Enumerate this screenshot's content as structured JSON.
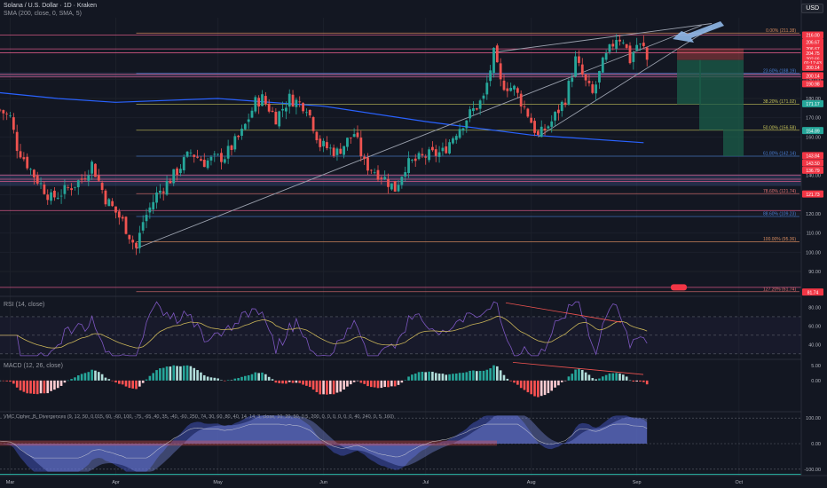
{
  "header": {
    "title": "Solana / U.S. Dollar · 1D · Kraken",
    "sma_legend": "SMA (200, close, 0, SMA, 5)",
    "currency": "USD"
  },
  "colors": {
    "background": "#131722",
    "up": "#26a69a",
    "down": "#ef5350",
    "sma": "#2962ff",
    "pink_line": "#f06292",
    "rsi": "#7e57c2",
    "fib_yellow": "#c9c65a",
    "fib_red": "#e57373",
    "arrow": "#90b8e8"
  },
  "chart_data": [
    {
      "type": "candlestick",
      "title": "Solana / U.S. Dollar · 1D · Kraken",
      "x_ticks": [
        "Mar",
        "Apr",
        "May",
        "Jun",
        "Jul",
        "Aug",
        "Sep",
        "Oct"
      ],
      "y_ticks": [
        90,
        100,
        110,
        120,
        130,
        140,
        150,
        160,
        170,
        180,
        190
      ],
      "ylim": [
        78,
        222
      ],
      "price_path": [
        [
          "2025-02-26",
          174
        ],
        [
          "2025-03-01",
          170
        ],
        [
          "2025-03-03",
          155
        ],
        [
          "2025-03-08",
          140
        ],
        [
          "2025-03-13",
          128
        ],
        [
          "2025-03-17",
          132
        ],
        [
          "2025-03-22",
          138
        ],
        [
          "2025-03-25",
          146
        ],
        [
          "2025-03-29",
          128
        ],
        [
          "2025-04-03",
          116
        ],
        [
          "2025-04-07",
          102
        ],
        [
          "2025-04-09",
          116
        ],
        [
          "2025-04-13",
          130
        ],
        [
          "2025-04-18",
          140
        ],
        [
          "2025-04-23",
          152
        ],
        [
          "2025-04-27",
          147
        ],
        [
          "2025-05-03",
          150
        ],
        [
          "2025-05-08",
          162
        ],
        [
          "2025-05-12",
          178
        ],
        [
          "2025-05-14",
          180
        ],
        [
          "2025-05-18",
          170
        ],
        [
          "2025-05-22",
          180
        ],
        [
          "2025-05-27",
          176
        ],
        [
          "2025-05-31",
          156
        ],
        [
          "2025-06-05",
          152
        ],
        [
          "2025-06-10",
          162
        ],
        [
          "2025-06-13",
          146
        ],
        [
          "2025-06-18",
          140
        ],
        [
          "2025-06-22",
          133
        ],
        [
          "2025-06-25",
          145
        ],
        [
          "2025-07-01",
          150
        ],
        [
          "2025-07-06",
          152
        ],
        [
          "2025-07-10",
          163
        ],
        [
          "2025-07-14",
          172
        ],
        [
          "2025-07-18",
          180
        ],
        [
          "2025-07-21",
          203
        ],
        [
          "2025-07-23",
          188
        ],
        [
          "2025-07-27",
          185
        ],
        [
          "2025-07-31",
          172
        ],
        [
          "2025-08-03",
          160
        ],
        [
          "2025-08-07",
          168
        ],
        [
          "2025-08-11",
          180
        ],
        [
          "2025-08-14",
          200
        ],
        [
          "2025-08-17",
          188
        ],
        [
          "2025-08-19",
          182
        ],
        [
          "2025-08-22",
          198
        ],
        [
          "2025-08-26",
          212
        ],
        [
          "2025-08-28",
          211
        ],
        [
          "2025-08-30",
          200
        ],
        [
          "2025-09-01",
          208
        ],
        [
          "2025-09-03",
          206
        ],
        [
          "2025-09-04",
          200
        ]
      ],
      "sma_200": [
        [
          "2025-02-26",
          183
        ],
        [
          "2025-03-15",
          180
        ],
        [
          "2025-04-01",
          178
        ],
        [
          "2025-05-01",
          180
        ],
        [
          "2025-06-01",
          176
        ],
        [
          "2025-07-01",
          168
        ],
        [
          "2025-08-01",
          161
        ],
        [
          "2025-09-03",
          157
        ]
      ],
      "horizontal_lines": [
        {
          "price": 213,
          "label": "216.00",
          "color": "#f06292"
        },
        {
          "price": 205.8,
          "label": "206.67",
          "color": "#f06292"
        },
        {
          "price": 203.75,
          "label": "204.75",
          "color": "#f06292"
        },
        {
          "price": 192.5,
          "label": "200.14",
          "color": "#f06292"
        },
        {
          "price": 191.2,
          "label": "190.98",
          "color": "#f06292"
        },
        {
          "price": 140.2,
          "label": "143.84",
          "color": "#f06292"
        },
        {
          "price": 138,
          "label": "143.50",
          "color": "#f06292"
        },
        {
          "price": 136.79,
          "label": "136.79",
          "color": "#f06292"
        },
        {
          "price": 121.73,
          "label": "121.73",
          "color": "#f06292"
        },
        {
          "price": 81.74,
          "label": "81.74",
          "color": "#f06292"
        }
      ],
      "fib_levels": [
        {
          "label": "0.00% (211.38)",
          "price": 214,
          "color": "#d98c5f"
        },
        {
          "label": "23.60% (188.19)",
          "price": 193,
          "color": "#4a7fd4"
        },
        {
          "label": "38.20% (171.02)",
          "price": 177,
          "color": "#c9c65a"
        },
        {
          "label": "50.00% (156.58)",
          "price": 163.5,
          "color": "#c9c65a"
        },
        {
          "label": "61.80% (142.14)",
          "price": 150,
          "color": "#4a7fd4"
        },
        {
          "label": "78.60% (121.74)",
          "price": 130.5,
          "color": "#e57373"
        },
        {
          "label": "88.60% (109.23)",
          "price": 118.6,
          "color": "#4a7fd4"
        },
        {
          "label": "100.00% (95.36)",
          "price": 105.5,
          "color": "#d98c5f"
        },
        {
          "label": "127.20% (61.74)",
          "price": 79.5,
          "color": "#e57373"
        }
      ],
      "price_tags": [
        {
          "label": "216.00",
          "price": 213,
          "color": "#f23645"
        },
        {
          "label": "206.67",
          "price": 209.3,
          "color": "#f23645"
        },
        {
          "label": "206.67",
          "price": 206,
          "color": "#f23645"
        },
        {
          "label": "204.75",
          "price": 203.6,
          "color": "#f23645"
        },
        {
          "label": "202.66",
          "price": 200.6,
          "color": "#f23645"
        },
        {
          "label": "01:17:43",
          "price": 198.6,
          "color": "#f23645"
        },
        {
          "label": "200.14",
          "price": 196.2,
          "color": "#f23645"
        },
        {
          "label": "200.14",
          "price": 191.8,
          "color": "#f23645"
        },
        {
          "label": "190.98",
          "price": 187.7,
          "color": "#f23645"
        },
        {
          "label": "171.17",
          "price": 177.3,
          "color": "#26a69a"
        },
        {
          "label": "154.89",
          "price": 163.3,
          "color": "#26a69a"
        },
        {
          "label": "143.84",
          "price": 150.3,
          "color": "#f23645"
        },
        {
          "label": "143.50",
          "price": 146.5,
          "color": "#f23645"
        },
        {
          "label": "136.79",
          "price": 142.7,
          "color": "#f23645"
        },
        {
          "label": "121.73",
          "price": 130.3,
          "color": "#f23645"
        },
        {
          "label": "81.74",
          "price": 79.3,
          "color": "#f23645"
        }
      ]
    },
    {
      "type": "line",
      "title": "RSI (14, close)",
      "y_ticks": [
        40,
        60,
        80
      ],
      "ylim": [
        25,
        90
      ]
    },
    {
      "type": "bar",
      "title": "MACD (12, 26, close)",
      "y_ticks": [
        "5.00",
        "0.00"
      ],
      "ylim": [
        -10,
        7
      ]
    },
    {
      "type": "line",
      "title": "VMC Cipher_B_Divergences (9, 12, 50, 0.015, 60, -60, 100, -75, -65, 40, 35, -40, -60, 250, 74, 30, 60, 80, 40, 14, 14, 3, close, 10, 20, 50, 0.5, 200, 0, 0, 0, 0, 0, 0, 40, 240, 0, 5, 160)",
      "y_ticks": [
        "100.00",
        "0.00",
        "-100.00"
      ],
      "ylim": [
        -125,
        125
      ]
    }
  ]
}
